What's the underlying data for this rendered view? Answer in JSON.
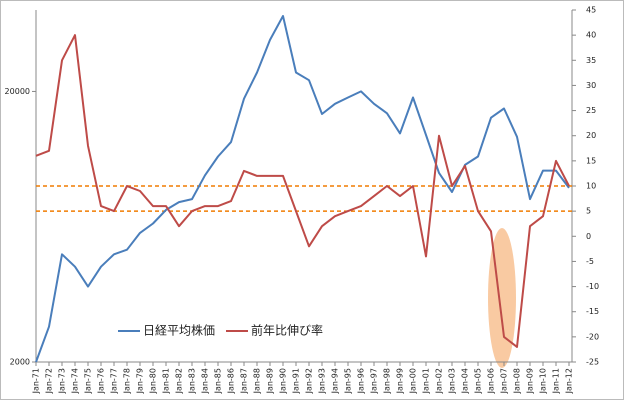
{
  "chart_data": {
    "type": "line",
    "categories": [
      "Jan-71",
      "Jan-72",
      "Jan-73",
      "Jan-74",
      "Jan-75",
      "Jan-76",
      "Jan-77",
      "Jan-78",
      "Jan-79",
      "Jan-80",
      "Jan-81",
      "Jan-82",
      "Jan-83",
      "Jan-84",
      "Jan-85",
      "Jan-86",
      "Jan-87",
      "Jan-88",
      "Jan-89",
      "Jan-90",
      "Jan-91",
      "Jan-92",
      "Jan-93",
      "Jan-94",
      "Jan-95",
      "Jan-96",
      "Jan-97",
      "Jan-98",
      "Jan-99",
      "Jan-00",
      "Jan-01",
      "Jan-02",
      "Jan-03",
      "Jan-04",
      "Jan-05",
      "Jan-06",
      "Jan-07",
      "Jan-08",
      "Jan-09",
      "Jan-10",
      "Jan-11",
      "Jan-12"
    ],
    "series": [
      {
        "name": "日経平均株価",
        "color": "#4a7ebb",
        "axis": "y",
        "values": [
          2000,
          2700,
          5000,
          4500,
          3800,
          4500,
          5000,
          5200,
          6000,
          6500,
          7300,
          7800,
          8000,
          9800,
          11500,
          13000,
          18800,
          23500,
          31000,
          38000,
          23500,
          22000,
          16500,
          18000,
          19000,
          20000,
          18000,
          16600,
          14000,
          19000,
          13800,
          10000,
          8500,
          10700,
          11500,
          16000,
          17300,
          13600,
          8000,
          10200,
          10200,
          8800
        ]
      },
      {
        "name": "前年比伸び率",
        "color": "#be4b48",
        "axis": "y2",
        "values": [
          16,
          17,
          35,
          40,
          18,
          6,
          5,
          10,
          9,
          6,
          6,
          2,
          5,
          6,
          6,
          7,
          13,
          12,
          12,
          12,
          5,
          -2,
          2,
          4,
          5,
          6,
          8,
          10,
          8,
          10,
          -4,
          20,
          10,
          14,
          5,
          1,
          -20,
          -22,
          2,
          4,
          15,
          10
        ]
      }
    ],
    "yscale": "log",
    "ylim": [
      2000,
      40000
    ],
    "yticks": [
      2000,
      20000
    ],
    "y2lim": [
      -25,
      45
    ],
    "y2ticks": [
      -25,
      -20,
      -15,
      -10,
      -5,
      0,
      5,
      10,
      15,
      20,
      25,
      30,
      35,
      40,
      45
    ],
    "reference_lines": {
      "axis": "y2",
      "values": [
        10,
        5
      ],
      "color": "#f07c00"
    },
    "legend": "bottom-left"
  }
}
